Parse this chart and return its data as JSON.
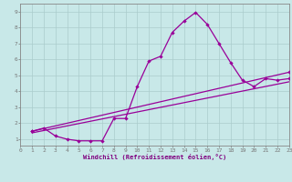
{
  "bg_color": "#c8e8e8",
  "line_color": "#990099",
  "grid_color": "#aacccc",
  "xlim": [
    0,
    23
  ],
  "ylim": [
    0.6,
    9.5
  ],
  "xticks": [
    0,
    1,
    2,
    3,
    4,
    5,
    6,
    7,
    8,
    9,
    10,
    11,
    12,
    13,
    14,
    15,
    16,
    17,
    18,
    19,
    20,
    21,
    22,
    23
  ],
  "yticks": [
    1,
    2,
    3,
    4,
    5,
    6,
    7,
    8,
    9
  ],
  "xlabel": "Windchill (Refroidissement éolien,°C)",
  "line1_x": [
    1,
    2,
    3,
    4,
    5,
    6,
    7,
    8,
    9,
    10,
    11,
    12,
    13,
    14,
    15,
    16,
    17,
    18,
    19,
    20,
    21,
    22,
    23
  ],
  "line1_y": [
    1.5,
    1.7,
    1.2,
    1.0,
    0.9,
    0.9,
    0.9,
    2.3,
    2.3,
    4.3,
    5.9,
    6.2,
    7.7,
    8.4,
    8.95,
    8.2,
    7.0,
    5.8,
    4.7,
    4.3,
    4.8,
    4.7,
    4.8
  ],
  "line2_x": [
    1,
    23
  ],
  "line2_y": [
    1.5,
    5.2
  ],
  "line3_x": [
    1,
    23
  ],
  "line3_y": [
    1.4,
    4.6
  ],
  "tick_fontsize": 4.5,
  "label_fontsize": 5.0
}
